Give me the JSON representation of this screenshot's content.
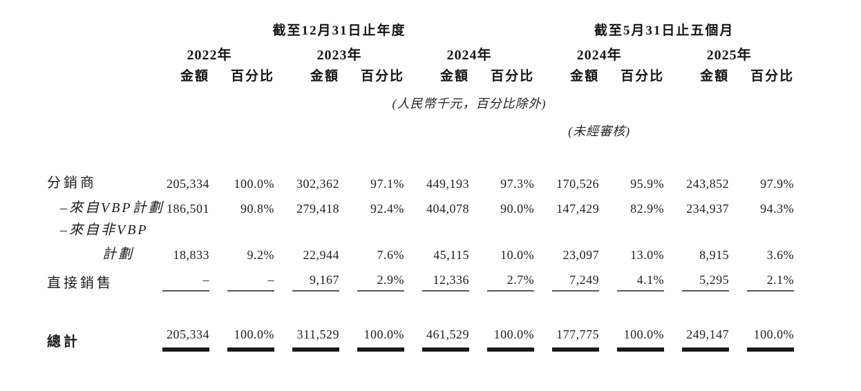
{
  "table": {
    "group_headers": {
      "annual": "截至12月31日止年度",
      "five_months": "截至5月31日止五個月"
    },
    "year_headers": [
      "2022年",
      "2023年",
      "2024年",
      "2024年",
      "2025年"
    ],
    "subcol_headers": {
      "amount": "金額",
      "percent": "百分比"
    },
    "notes": {
      "currency": "(人民幣千元，百分比除外)",
      "unaudited": "(未經審核)"
    },
    "rows": [
      {
        "label": "分銷商",
        "values": [
          "205,334",
          "100.0%",
          "302,362",
          "97.1%",
          "449,193",
          "97.3%",
          "170,526",
          "95.9%",
          "243,852",
          "97.9%"
        ]
      },
      {
        "label": "–來自VBP計劃",
        "values": [
          "186,501",
          "90.8%",
          "279,418",
          "92.4%",
          "404,078",
          "90.0%",
          "147,429",
          "82.9%",
          "234,937",
          "94.3%"
        ]
      },
      {
        "label": "–來自非VBP",
        "values": [
          "",
          "",
          "",
          "",
          "",
          "",
          "",
          "",
          "",
          ""
        ]
      },
      {
        "label": "計劃",
        "values": [
          "18,833",
          "9.2%",
          "22,944",
          "7.6%",
          "45,115",
          "10.0%",
          "23,097",
          "13.0%",
          "8,915",
          "3.6%"
        ]
      },
      {
        "label": "直接銷售",
        "values": [
          "–",
          "–",
          "9,167",
          "2.9%",
          "12,336",
          "2.7%",
          "7,249",
          "4.1%",
          "5,295",
          "2.1%"
        ]
      },
      {
        "label": "總計",
        "values": [
          "205,334",
          "100.0%",
          "311,529",
          "100.0%",
          "461,529",
          "100.0%",
          "177,775",
          "100.0%",
          "249,147",
          "100.0%"
        ]
      }
    ]
  },
  "colors": {
    "text": "#1c1c1c",
    "single_rule": "#565656",
    "double_rule": "#1a1a1a",
    "background": "#ffffff"
  }
}
